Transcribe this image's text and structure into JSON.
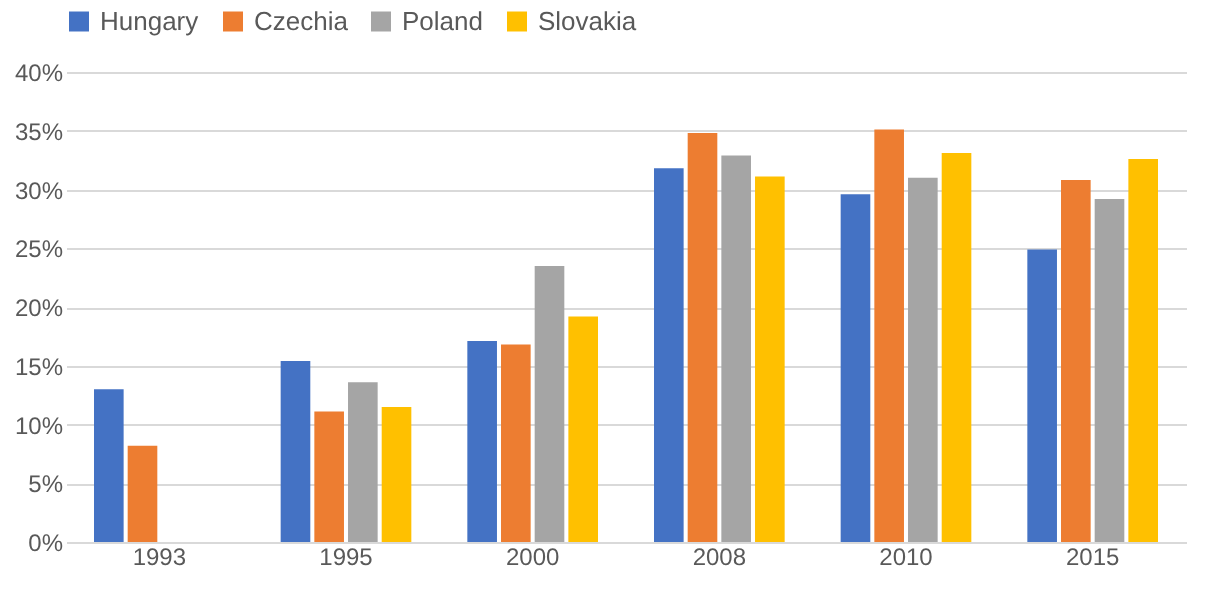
{
  "chart_data": {
    "type": "bar",
    "categories": [
      "1993",
      "1995",
      "2000",
      "2008",
      "2010",
      "2015"
    ],
    "series": [
      {
        "name": "Hungary",
        "color": "#4472c4",
        "values": [
          13.0,
          15.4,
          17.1,
          31.8,
          29.6,
          24.9
        ]
      },
      {
        "name": "Czechia",
        "color": "#ed7d31",
        "values": [
          8.2,
          11.1,
          16.8,
          34.8,
          35.1,
          30.8
        ]
      },
      {
        "name": "Poland",
        "color": "#a5a5a5",
        "values": [
          null,
          13.6,
          23.5,
          32.9,
          31.0,
          29.2
        ]
      },
      {
        "name": "Slovakia",
        "color": "#ffc000",
        "values": [
          null,
          11.5,
          19.2,
          31.1,
          33.1,
          32.6
        ]
      }
    ],
    "ylim": [
      0,
      40
    ],
    "yticks": [
      {
        "value": 0,
        "label": "0%"
      },
      {
        "value": 5,
        "label": "5%"
      },
      {
        "value": 10,
        "label": "10%"
      },
      {
        "value": 15,
        "label": "15%"
      },
      {
        "value": 20,
        "label": "20%"
      },
      {
        "value": 25,
        "label": "25%"
      },
      {
        "value": 30,
        "label": "30%"
      },
      {
        "value": 35,
        "label": "35%"
      },
      {
        "value": 40,
        "label": "40%"
      }
    ],
    "grid": "y",
    "legend": "top"
  }
}
